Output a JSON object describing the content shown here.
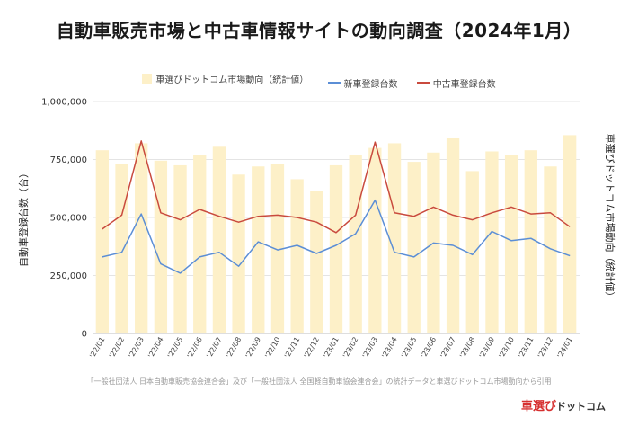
{
  "header": {
    "title": "自動車販売市場と中古車情報サイトの動向調査（2024年1月）"
  },
  "footer": {
    "source": "「一般社団法人 日本自動車販売協会連合会」及び「一般社団法人 全国軽自動車協会連合会」の統計データと車選びドットコム市場動向から引用",
    "logo_main": "車選び",
    "logo_sub": "ドットコム"
  },
  "colors": {
    "bar": "#fdf0c8",
    "new_line": "#5b8ed6",
    "used_line": "#c94a3e",
    "grid": "#e4e4e4"
  },
  "chart_data": {
    "type": "bar",
    "ylabel": "自動車登録台数（台）",
    "ylabel_right": "車選びドットコム市場動向（統計値）",
    "ylim": [
      0,
      1000000
    ],
    "yticks": [
      "0",
      "250,000",
      "500,000",
      "750,000",
      "1,000,000"
    ],
    "grid": true,
    "legend_position": "top",
    "categories": [
      "'22/01",
      "'22/02",
      "'22/03",
      "'22/04",
      "'22/05",
      "'22/06",
      "'22/07",
      "'22/08",
      "'22/09",
      "'22/10",
      "'22/11",
      "'22/12",
      "'23/01",
      "'23/02",
      "'23/03",
      "'23/04",
      "'23/05",
      "'23/06",
      "'23/07",
      "'23/08",
      "'23/09",
      "'23/10",
      "'23/11",
      "'23/12",
      "'24/01"
    ],
    "series": [
      {
        "name": "車選びドットコム市場動向（統計値）",
        "type": "bar",
        "axis": "right",
        "values": [
          790000,
          730000,
          820000,
          745000,
          725000,
          770000,
          805000,
          685000,
          720000,
          730000,
          665000,
          615000,
          725000,
          770000,
          800000,
          820000,
          740000,
          780000,
          845000,
          700000,
          785000,
          770000,
          790000,
          720000,
          855000
        ]
      },
      {
        "name": "新車登録台数",
        "type": "line",
        "axis": "left",
        "values": [
          330000,
          350000,
          515000,
          300000,
          260000,
          330000,
          350000,
          290000,
          395000,
          360000,
          380000,
          345000,
          380000,
          430000,
          575000,
          350000,
          330000,
          390000,
          380000,
          340000,
          440000,
          400000,
          410000,
          365000,
          335000
        ]
      },
      {
        "name": "中古車登録台数",
        "type": "line",
        "axis": "left",
        "values": [
          450000,
          510000,
          830000,
          520000,
          490000,
          535000,
          505000,
          480000,
          505000,
          510000,
          500000,
          480000,
          435000,
          510000,
          825000,
          520000,
          505000,
          545000,
          510000,
          490000,
          520000,
          545000,
          515000,
          520000,
          460000
        ]
      }
    ]
  }
}
